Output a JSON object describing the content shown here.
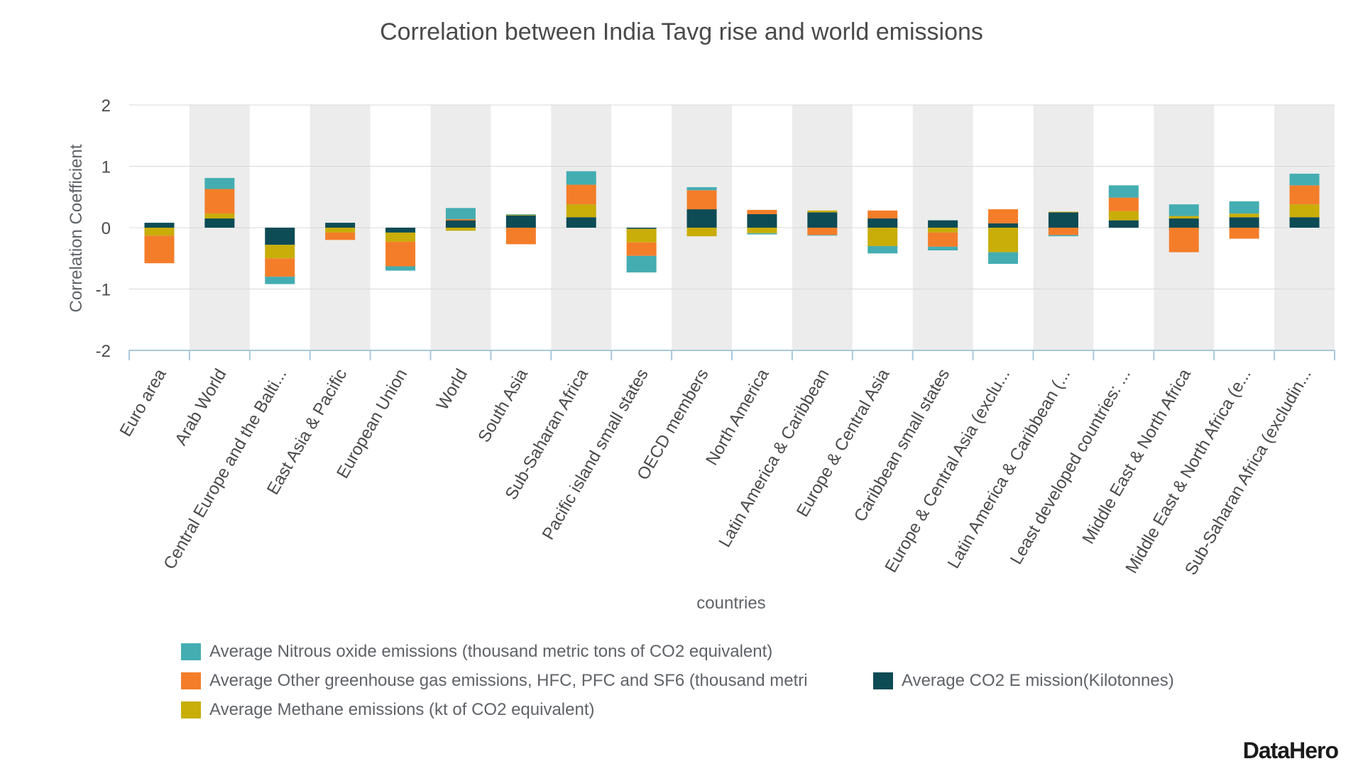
{
  "chart_data": {
    "type": "bar",
    "stacked": true,
    "title": "Correlation between India Tavg rise and world emissions",
    "xlabel": "countries",
    "ylabel": "Correlation Coefficient",
    "ylim": [
      -2,
      2
    ],
    "yticks": [
      2,
      1,
      0,
      -1,
      -2
    ],
    "grid": true,
    "legend_position": "bottom",
    "categories": [
      "Euro area",
      "Arab World",
      "Central Europe and the Balti...",
      "East Asia & Pacific",
      "European Union",
      "World",
      "South Asia",
      "Sub-Saharan Africa",
      "Pacific island small states",
      "OECD members",
      "North America",
      "Latin America & Caribbean",
      "Europe & Central Asia",
      "Caribbean small states",
      "Europe & Central Asia (exclu...",
      "Latin America & Caribbean (...",
      "Least developed countries: ...",
      "Middle East & North Africa",
      "Middle East & North Africa (e...",
      "Sub-Saharan Africa (excludin..."
    ],
    "series": [
      {
        "name": "Average CO2 E mission(Kilotonnes)",
        "color": "#0d4b55",
        "values": [
          0.08,
          0.15,
          -0.28,
          0.08,
          -0.08,
          0.12,
          0.2,
          0.17,
          -0.02,
          0.3,
          0.22,
          0.25,
          0.15,
          0.12,
          0.07,
          0.25,
          0.12,
          0.15,
          0.17,
          0.17
        ]
      },
      {
        "name": "Average Methane emissions (kt of CO2 equivalent)",
        "color": "#c9ad08",
        "values": [
          -0.13,
          0.08,
          -0.22,
          -0.08,
          -0.15,
          -0.05,
          0.01,
          0.21,
          -0.22,
          -0.14,
          -0.09,
          0.03,
          -0.3,
          -0.08,
          -0.4,
          0.01,
          0.15,
          0.04,
          0.06,
          0.21
        ]
      },
      {
        "name": "Average Other greenhouse gas emissions, HFC, PFC and SF6 (thousand metri",
        "color": "#f47d2a",
        "values": [
          -0.45,
          0.4,
          -0.3,
          -0.12,
          -0.4,
          0.02,
          -0.27,
          0.32,
          -0.22,
          0.31,
          0.07,
          -0.12,
          0.13,
          -0.23,
          0.23,
          -0.12,
          0.22,
          -0.4,
          -0.18,
          0.31
        ]
      },
      {
        "name": "Average Nitrous oxide emissions (thousand metric tons of CO2 equivalent)",
        "color": "#44adb1",
        "values": [
          0.0,
          0.18,
          -0.12,
          0.0,
          -0.07,
          0.18,
          0.01,
          0.22,
          -0.27,
          0.05,
          -0.02,
          -0.01,
          -0.12,
          -0.06,
          -0.19,
          -0.02,
          0.2,
          0.19,
          0.2,
          0.19
        ]
      }
    ]
  },
  "legend": {
    "nitrous": {
      "label": "Average Nitrous oxide emissions (thousand metric tons of CO2 equivalent)",
      "color": "#44adb1"
    },
    "other": {
      "label": "Average Other greenhouse gas emissions, HFC, PFC and SF6 (thousand metri",
      "color": "#f47d2a"
    },
    "co2": {
      "label": "Average CO2 E mission(Kilotonnes)",
      "color": "#0d4b55"
    },
    "methane": {
      "label": "Average Methane emissions (kt of CO2 equivalent)",
      "color": "#c9ad08"
    }
  },
  "brand": "DataHero"
}
